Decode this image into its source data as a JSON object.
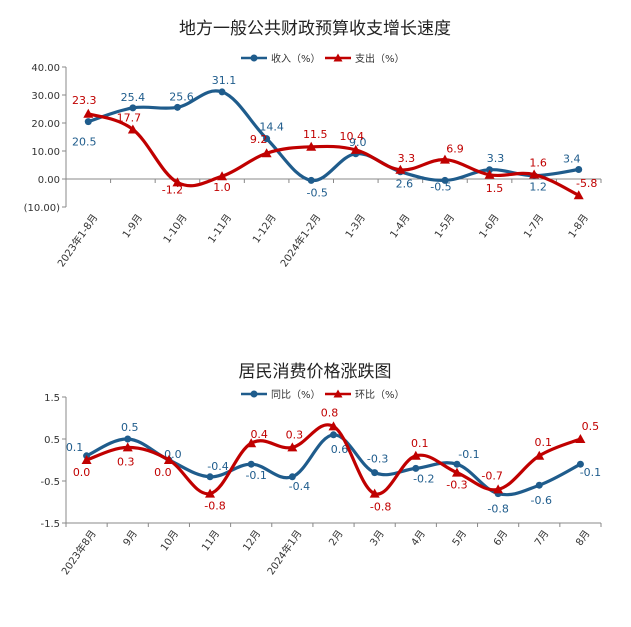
{
  "chart_data": [
    {
      "type": "line",
      "title": "地方一般公共财政预算收支增长速度",
      "categories": [
        "2023年1-8月",
        "1-9月",
        "1-10月",
        "1-11月",
        "1-12月",
        "2024年1-2月",
        "1-3月",
        "1-4月",
        "1-5月",
        "1-6月",
        "1-7月",
        "1-8月"
      ],
      "ylim": [
        -10,
        40
      ],
      "yticks": [
        40,
        30,
        20,
        10,
        0,
        -10
      ],
      "ytick_labels": [
        "40.00",
        "30.00",
        "20.00",
        "10.00",
        "0.00",
        "(10.00)"
      ],
      "legend_position": "top-center",
      "series": [
        {
          "name": "收入（%）",
          "color": "#1f5c8c",
          "marker": "circle",
          "values": [
            20.5,
            25.4,
            25.6,
            31.1,
            14.4,
            -0.5,
            9.0,
            2.6,
            -0.5,
            3.3,
            1.2,
            3.4
          ],
          "labels": [
            "20.5",
            "25.4",
            "25.6",
            "31.1",
            "14.4",
            "-0.5",
            "9.0",
            "2.6",
            "-0.5",
            "3.3",
            "1.2",
            "3.4"
          ]
        },
        {
          "name": "支出（%）",
          "color": "#c00000",
          "marker": "triangle",
          "values": [
            23.3,
            17.7,
            -1.2,
            1.0,
            9.2,
            11.5,
            10.4,
            3.3,
            6.9,
            1.5,
            1.6,
            -5.8
          ],
          "labels": [
            "23.3",
            "17.7",
            "-1.2",
            "1.0",
            "9.2",
            "11.5",
            "10.4",
            "3.3",
            "6.9",
            "1.5",
            "1.6",
            "-5.8"
          ]
        }
      ]
    },
    {
      "type": "line",
      "title": "居民消费价格涨跌图",
      "categories": [
        "2023年8月",
        "9月",
        "10月",
        "11月",
        "12月",
        "2024年1月",
        "2月",
        "3月",
        "4月",
        "5月",
        "6月",
        "7月",
        "8月"
      ],
      "ylim": [
        -1.5,
        1.5
      ],
      "yticks": [
        1.5,
        0.5,
        -0.5,
        -1.5
      ],
      "ytick_labels": [
        "1.5",
        "0.5",
        "-0.5",
        "-1.5"
      ],
      "legend_position": "top-center",
      "series": [
        {
          "name": "同比（%）",
          "color": "#1f5c8c",
          "marker": "circle",
          "values": [
            0.1,
            0.5,
            0.0,
            -0.4,
            -0.1,
            -0.4,
            0.6,
            -0.3,
            -0.2,
            -0.1,
            -0.8,
            -0.6,
            -0.1
          ],
          "labels": [
            "0.1",
            "0.5",
            "0.0",
            "-0.4",
            "-0.1",
            "-0.4",
            "0.6",
            "-0.3",
            "-0.2",
            "-0.1",
            "-0.8",
            "-0.6",
            "-0.1"
          ]
        },
        {
          "name": "环比（%）",
          "color": "#c00000",
          "marker": "triangle",
          "values": [
            0.0,
            0.3,
            0.0,
            -0.8,
            0.4,
            0.3,
            0.8,
            -0.8,
            0.1,
            -0.3,
            -0.7,
            0.1,
            0.5
          ],
          "labels": [
            "0.0",
            "0.3",
            "0.0",
            "-0.8",
            "0.4",
            "0.3",
            "0.8",
            "-0.8",
            "0.1",
            "-0.3",
            "-0.7",
            "0.1",
            "0.5"
          ]
        }
      ]
    }
  ]
}
